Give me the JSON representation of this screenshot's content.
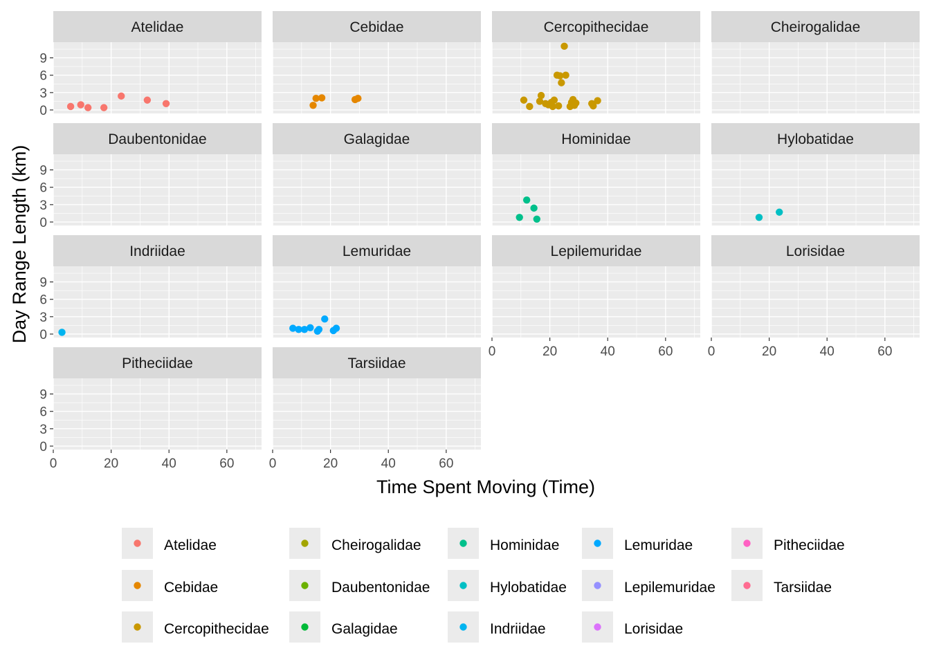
{
  "chart_data": {
    "type": "scatter",
    "xlabel": "Time Spent Moving (Time)",
    "ylabel": "Day Range Length (km)",
    "xlim": [
      0,
      72
    ],
    "ylim": [
      -0.6,
      11.7
    ],
    "x_ticks": [
      0,
      20,
      40,
      60
    ],
    "y_ticks": [
      0,
      3,
      6,
      9
    ],
    "grid": true,
    "legend_position": "bottom",
    "facets": [
      {
        "name": "Atelidae",
        "color": "#F8766D",
        "points": [
          [
            6,
            0.6
          ],
          [
            9.5,
            0.9
          ],
          [
            12,
            0.4
          ],
          [
            17.5,
            0.4
          ],
          [
            23.5,
            2.4
          ],
          [
            32.5,
            1.7
          ],
          [
            39,
            1.1
          ]
        ]
      },
      {
        "name": "Cebidae",
        "color": "#E58700",
        "points": [
          [
            14,
            0.8
          ],
          [
            15,
            2.0
          ],
          [
            17,
            2.1
          ],
          [
            28.5,
            1.8
          ],
          [
            29.5,
            2.0
          ]
        ]
      },
      {
        "name": "Cercopithecidae",
        "color": "#C99800",
        "points": [
          [
            11,
            1.7
          ],
          [
            13,
            0.6
          ],
          [
            16.5,
            1.5
          ],
          [
            17,
            2.5
          ],
          [
            18.5,
            1.1
          ],
          [
            19.5,
            0.9
          ],
          [
            20.5,
            1.3
          ],
          [
            21,
            0.6
          ],
          [
            21.5,
            1.7
          ],
          [
            22.5,
            6.0
          ],
          [
            23,
            0.7
          ],
          [
            23.5,
            5.9
          ],
          [
            24,
            4.7
          ],
          [
            25,
            11.0
          ],
          [
            25.5,
            6.0
          ],
          [
            27,
            0.6
          ],
          [
            27.5,
            1.3
          ],
          [
            28,
            1.8
          ],
          [
            28.5,
            0.8
          ],
          [
            29,
            1.2
          ],
          [
            34.5,
            1.1
          ],
          [
            35,
            0.7
          ],
          [
            36.5,
            1.6
          ]
        ]
      },
      {
        "name": "Cheirogalidae",
        "color": "#A3A500",
        "points": []
      },
      {
        "name": "Daubentonidae",
        "color": "#6BB100",
        "points": []
      },
      {
        "name": "Galagidae",
        "color": "#00BA38",
        "points": []
      },
      {
        "name": "Hominidae",
        "color": "#00C08B",
        "points": [
          [
            9.5,
            0.8
          ],
          [
            12,
            3.8
          ],
          [
            14.5,
            2.4
          ],
          [
            15.5,
            0.5
          ]
        ]
      },
      {
        "name": "Hylobatidae",
        "color": "#00BFC4",
        "points": [
          [
            16.5,
            0.8
          ],
          [
            23.5,
            1.7
          ]
        ]
      },
      {
        "name": "Indriidae",
        "color": "#00B4F0",
        "points": [
          [
            3,
            0.3
          ]
        ]
      },
      {
        "name": "Lemuridae",
        "color": "#00A9FF",
        "points": [
          [
            7,
            1.0
          ],
          [
            9,
            0.8
          ],
          [
            11,
            0.8
          ],
          [
            13,
            1.1
          ],
          [
            15.5,
            0.5
          ],
          [
            16,
            0.8
          ],
          [
            18,
            2.6
          ],
          [
            21,
            0.6
          ],
          [
            22,
            1.0
          ]
        ]
      },
      {
        "name": "Lepilemuridae",
        "color": "#9590FF",
        "points": []
      },
      {
        "name": "Lorisidae",
        "color": "#DB72FB",
        "points": []
      },
      {
        "name": "Pitheciidae",
        "color": "#FF61C3",
        "points": []
      },
      {
        "name": "Tarsiidae",
        "color": "#FF6C91",
        "points": []
      }
    ],
    "legend": [
      [
        "Atelidae",
        "Cebidae",
        "Cercopithecidae"
      ],
      [
        "Cheirogalidae",
        "Daubentonidae",
        "Galagidae"
      ],
      [
        "Hominidae",
        "Hylobatidae",
        "Indriidae"
      ],
      [
        "Lemuridae",
        "Lepilemuridae",
        "Lorisidae"
      ],
      [
        "Pitheciidae",
        "Tarsiidae"
      ]
    ]
  }
}
